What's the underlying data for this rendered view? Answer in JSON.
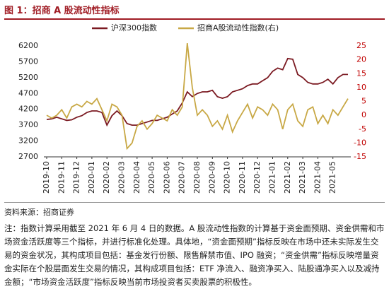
{
  "chart_data": {
    "type": "line",
    "title": "图 1：招商 A 股流动性指标",
    "categories": [
      "2019-10",
      null,
      null,
      "2019-11",
      null,
      null,
      "2019-12",
      null,
      null,
      "2020-01",
      null,
      null,
      "2020-02",
      null,
      null,
      "2020-03",
      null,
      null,
      "2020-04",
      null,
      null,
      "2020-05",
      null,
      null,
      "2020-06",
      null,
      null,
      "2020-07",
      null,
      null,
      "2020-08",
      null,
      null,
      "2020-09",
      null,
      null,
      "2020-10",
      null,
      null,
      "2020-11",
      null,
      null,
      "2020-12",
      null,
      null,
      "2021-01",
      null,
      null,
      "2021-02",
      null,
      null,
      "2021-03",
      null,
      null,
      "2021-04",
      null,
      null,
      "2021-05",
      null,
      null,
      null
    ],
    "series": [
      {
        "name": "沪深300指数",
        "color": "#7b1a22",
        "values": [
          3880,
          3900,
          3950,
          3900,
          3850,
          3870,
          3950,
          4000,
          4100,
          4150,
          4150,
          4100,
          3700,
          4000,
          4150,
          4000,
          3750,
          3700,
          3700,
          3750,
          3800,
          3850,
          3850,
          3900,
          3950,
          4050,
          4150,
          4400,
          4750,
          4600,
          4700,
          4750,
          4750,
          4800,
          4600,
          4550,
          4600,
          4750,
          4800,
          4850,
          4950,
          5000,
          5000,
          5100,
          5200,
          5400,
          5500,
          5450,
          5800,
          5780,
          5300,
          5200,
          5050,
          5000,
          5000,
          5050,
          5150,
          5000,
          5200,
          5300,
          5300
        ]
      },
      {
        "name": "招商A股流动性指数(右)",
        "color": "#c8a845",
        "axis": "y2",
        "values": [
          0,
          -1,
          0,
          2,
          -1,
          3,
          4,
          3,
          5,
          4,
          6,
          2,
          -2,
          4,
          3,
          0,
          -12,
          -10,
          -4,
          -2,
          -5,
          -3,
          0,
          -1,
          -2,
          2,
          0,
          3,
          26,
          10,
          0,
          2,
          0,
          -4,
          -2,
          -5,
          0,
          -6,
          -2,
          1,
          4,
          -1,
          3,
          2,
          0,
          4,
          2,
          -5,
          2,
          4,
          -2,
          -4,
          2,
          3,
          -3,
          0,
          -3,
          2,
          0,
          3,
          6
        ]
      }
    ],
    "ylim": [
      2700,
      6200
    ],
    "yticks": [
      2700,
      3200,
      3700,
      4200,
      4700,
      5200,
      5700,
      6200
    ],
    "y2lim": [
      -15,
      25
    ],
    "y2ticks": [
      -15,
      -10,
      -5,
      0,
      5,
      10,
      15,
      20,
      25
    ],
    "y2_color": "#c00000",
    "source": "资料来源：招商证券",
    "note": "注：指数计算采用截至 2021 年 6 月 4 日的数据。A 股流动性指数的计算基于资金面预期、资金供需和市场资金活跃度等三个指标，并进行标准化处理。具体地，“资金面预期”指标反映在市场中还未实际发生交易的资金状况，其构成项目包括：基金发行份额、限售解禁市值、IPO 融资；“资金供需”指标反映增量资金实际在个股层面发生交易的情况，其构成项目包括：ETF 净流入、融资净买入、陆股通净买入以及减持金额；“市场资金活跃度”指标反映当前市场投资者买卖股票的积极性。"
  }
}
